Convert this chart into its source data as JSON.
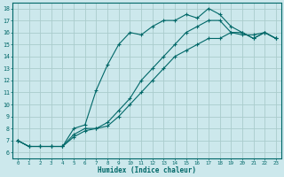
{
  "title": "",
  "xlabel": "Humidex (Indice chaleur)",
  "bg_color": "#cce8ec",
  "grid_color": "#aacccc",
  "line_color": "#006868",
  "spine_color": "#006868",
  "xlim": [
    -0.5,
    23.5
  ],
  "ylim": [
    5.5,
    18.5
  ],
  "xticks": [
    0,
    1,
    2,
    3,
    4,
    5,
    6,
    7,
    8,
    9,
    10,
    11,
    12,
    13,
    14,
    15,
    16,
    17,
    18,
    19,
    20,
    21,
    22,
    23
  ],
  "yticks": [
    6,
    7,
    8,
    9,
    10,
    11,
    12,
    13,
    14,
    15,
    16,
    17,
    18
  ],
  "line1_x": [
    0,
    1,
    2,
    3,
    4,
    5,
    6,
    7,
    8,
    9,
    10,
    11,
    12,
    13,
    14,
    15,
    16,
    17,
    18,
    19,
    20,
    21,
    22,
    23
  ],
  "line1_y": [
    7,
    6.5,
    6.5,
    6.5,
    6.5,
    8.0,
    8.3,
    11.2,
    13.3,
    15.0,
    16.0,
    15.8,
    16.5,
    17.0,
    17.0,
    17.5,
    17.2,
    18.0,
    17.5,
    16.5,
    16.0,
    15.5,
    16.0,
    15.5
  ],
  "line2_x": [
    0,
    1,
    2,
    3,
    4,
    5,
    6,
    7,
    8,
    9,
    10,
    11,
    12,
    13,
    14,
    15,
    16,
    17,
    18,
    19,
    20,
    21,
    22,
    23
  ],
  "line2_y": [
    7,
    6.5,
    6.5,
    6.5,
    6.5,
    7.3,
    7.8,
    8.0,
    8.2,
    9.0,
    10.0,
    11.0,
    12.0,
    13.0,
    14.0,
    14.5,
    15.0,
    15.5,
    15.5,
    16.0,
    15.8,
    15.8,
    16.0,
    15.5
  ],
  "line3_x": [
    0,
    1,
    2,
    3,
    4,
    5,
    6,
    7,
    8,
    9,
    10,
    11,
    12,
    13,
    14,
    15,
    16,
    17,
    18,
    19,
    20,
    21,
    22,
    23
  ],
  "line3_y": [
    7,
    6.5,
    6.5,
    6.5,
    6.5,
    7.5,
    8.0,
    8.0,
    8.5,
    9.5,
    10.5,
    12.0,
    13.0,
    14.0,
    15.0,
    16.0,
    16.5,
    17.0,
    17.0,
    16.0,
    16.0,
    15.5,
    16.0,
    15.5
  ]
}
